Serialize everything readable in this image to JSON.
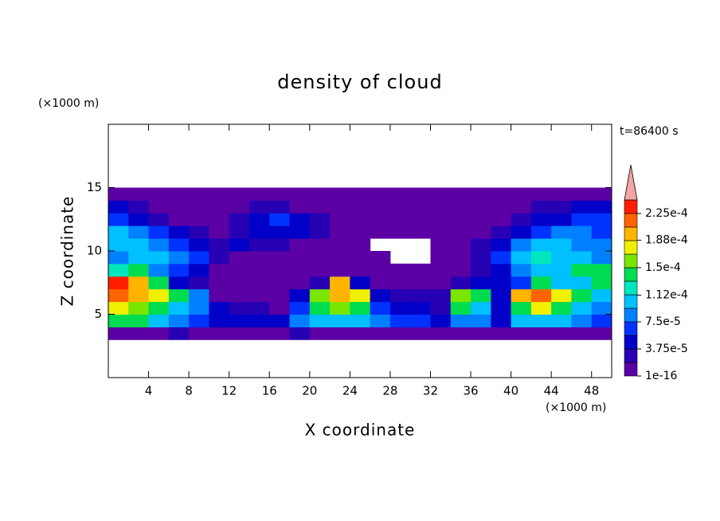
{
  "chart_data": {
    "type": "contour",
    "title": "density of cloud",
    "annotation": "t=86400 s",
    "xlabel": "X coordinate",
    "ylabel": "Z coordinate",
    "xunit": "(×1000 m)",
    "yunit": "(×1000 m)",
    "xlim": [
      0,
      50
    ],
    "ylim": [
      0,
      20
    ],
    "xticks": [
      4,
      8,
      12,
      16,
      20,
      24,
      28,
      32,
      36,
      40,
      44,
      48
    ],
    "yticks": [
      5,
      10,
      15
    ],
    "x": [
      1,
      3,
      5,
      7,
      9,
      11,
      13,
      15,
      17,
      19,
      21,
      23,
      25,
      27,
      29,
      31,
      33,
      35,
      37,
      39,
      41,
      43,
      45,
      47,
      49
    ],
    "y": [
      3.5,
      4.5,
      5.5,
      6.5,
      7.5,
      8.5,
      9.5,
      10.5,
      11.5,
      12.5,
      13.5,
      14.5
    ],
    "z": [
      [
        1e-05,
        1e-05,
        1e-05,
        2.8e-05,
        1e-05,
        1e-05,
        1e-05,
        1e-05,
        1e-05,
        2.8e-05,
        1e-05,
        1e-05,
        1e-05,
        1e-05,
        1e-05,
        1e-05,
        1e-05,
        1e-05,
        1e-05,
        1e-05,
        1e-05,
        1e-05,
        1e-05,
        1e-05,
        1e-05
      ],
      [
        0.00014,
        0.00014,
        0.000103,
        8.4e-05,
        6.5e-05,
        4.7e-05,
        4.7e-05,
        4.7e-05,
        4.7e-05,
        8.4e-05,
        0.000103,
        0.000103,
        0.000103,
        8.4e-05,
        6.5e-05,
        6.5e-05,
        4.7e-05,
        8.4e-05,
        8.4e-05,
        4.7e-05,
        0.000103,
        0.000103,
        0.000103,
        8.4e-05,
        6.5e-05
      ],
      [
        0.000178,
        0.00016,
        0.00014,
        0.000103,
        8.4e-05,
        4.7e-05,
        2.8e-05,
        2.8e-05,
        1e-05,
        6.5e-05,
        0.00014,
        0.00016,
        0.00014,
        6.5e-05,
        4.7e-05,
        4.7e-05,
        2.8e-05,
        0.00014,
        0.000103,
        4.7e-05,
        0.00014,
        0.000178,
        0.00014,
        0.000103,
        8.4e-05
      ],
      [
        0.000215,
        0.000197,
        0.000178,
        0.00014,
        8.4e-05,
        1e-05,
        1e-05,
        1e-05,
        1e-05,
        4.7e-05,
        0.00016,
        0.000197,
        0.000178,
        4.7e-05,
        2.8e-05,
        2.8e-05,
        2.8e-05,
        0.00016,
        0.00014,
        4.7e-05,
        0.000197,
        0.000215,
        0.000178,
        0.00014,
        0.000103
      ],
      [
        0.000234,
        0.000197,
        0.00014,
        4.7e-05,
        2.8e-05,
        1e-05,
        1e-05,
        1e-05,
        1e-05,
        1e-05,
        2.8e-05,
        0.000197,
        4.7e-05,
        1e-05,
        1e-05,
        1e-05,
        1e-05,
        2.8e-05,
        4.7e-05,
        4.7e-05,
        6.5e-05,
        0.00014,
        0.000103,
        0.000103,
        0.00014
      ],
      [
        0.000122,
        0.00014,
        8.4e-05,
        6.5e-05,
        4.7e-05,
        1e-05,
        1e-05,
        1e-05,
        1e-05,
        1e-05,
        1e-05,
        1e-05,
        1e-05,
        1e-05,
        1e-05,
        1e-05,
        1e-05,
        1e-05,
        2.8e-05,
        4.7e-05,
        8.4e-05,
        0.000103,
        0.000103,
        0.00014,
        0.00014
      ],
      [
        8.4e-05,
        0.000103,
        0.000103,
        8.4e-05,
        6.5e-05,
        2.8e-05,
        1e-05,
        1e-05,
        1e-05,
        1e-05,
        1e-05,
        1e-05,
        1e-05,
        1e-05,
        null,
        null,
        1e-05,
        1e-05,
        2.8e-05,
        6.5e-05,
        0.000103,
        0.000122,
        0.000103,
        0.000103,
        8.4e-05
      ],
      [
        0.000103,
        0.000103,
        8.4e-05,
        6.5e-05,
        4.7e-05,
        2.8e-05,
        4.7e-05,
        2.8e-05,
        2.8e-05,
        1e-05,
        1e-05,
        1e-05,
        1e-05,
        null,
        null,
        null,
        1e-05,
        1e-05,
        2.8e-05,
        4.7e-05,
        8.4e-05,
        0.000103,
        0.000103,
        8.4e-05,
        8.4e-05
      ],
      [
        0.000103,
        8.4e-05,
        6.5e-05,
        4.7e-05,
        2.8e-05,
        1e-05,
        2.8e-05,
        4.7e-05,
        4.7e-05,
        4.7e-05,
        2.8e-05,
        1e-05,
        1e-05,
        1e-05,
        1e-05,
        1e-05,
        1e-05,
        1e-05,
        1e-05,
        2.8e-05,
        4.7e-05,
        6.5e-05,
        8.4e-05,
        8.4e-05,
        6.5e-05
      ],
      [
        6.5e-05,
        4.7e-05,
        2.8e-05,
        1e-05,
        1e-05,
        1e-05,
        2.8e-05,
        4.7e-05,
        6.5e-05,
        4.7e-05,
        2.8e-05,
        1e-05,
        1e-05,
        1e-05,
        1e-05,
        1e-05,
        1e-05,
        1e-05,
        1e-05,
        1e-05,
        2.8e-05,
        4.7e-05,
        4.7e-05,
        6.5e-05,
        6.5e-05
      ],
      [
        4.7e-05,
        2.8e-05,
        1e-05,
        1e-05,
        1e-05,
        1e-05,
        1e-05,
        2.8e-05,
        2.8e-05,
        1e-05,
        1e-05,
        1e-05,
        1e-05,
        1e-05,
        1e-05,
        1e-05,
        1e-05,
        1e-05,
        1e-05,
        1e-05,
        1e-05,
        2.8e-05,
        2.8e-05,
        4.7e-05,
        4.7e-05
      ],
      [
        1e-05,
        1e-05,
        1e-05,
        1e-05,
        1e-05,
        1e-05,
        1e-05,
        1e-05,
        1e-05,
        1e-05,
        1e-05,
        1e-05,
        1e-05,
        1e-05,
        1e-05,
        1e-05,
        1e-05,
        1e-05,
        1e-05,
        1e-05,
        1e-05,
        1e-05,
        1e-05,
        1e-05,
        1e-05
      ]
    ],
    "clim": [
      0,
      0.00024375
    ],
    "colors": [
      "#5a00a5",
      "#2800b4",
      "#0000c8",
      "#0032ff",
      "#0080ff",
      "#00c0ff",
      "#00e6be",
      "#00dc50",
      "#78e600",
      "#f0f000",
      "#ffb400",
      "#ff6400",
      "#ff1e00"
    ],
    "extend_color": "#f4a4a4",
    "cticks": [
      {
        "value": 1e-16,
        "label": "1e-16"
      },
      {
        "value": 3.75e-05,
        "label": "3.75e-5"
      },
      {
        "value": 7.5e-05,
        "label": "7.5e-5"
      },
      {
        "value": 0.000112,
        "label": "1.12e-4"
      },
      {
        "value": 0.00015,
        "label": "1.5e-4"
      },
      {
        "value": 0.000188,
        "label": "1.88e-4"
      },
      {
        "value": 0.000225,
        "label": "2.25e-4"
      }
    ]
  }
}
